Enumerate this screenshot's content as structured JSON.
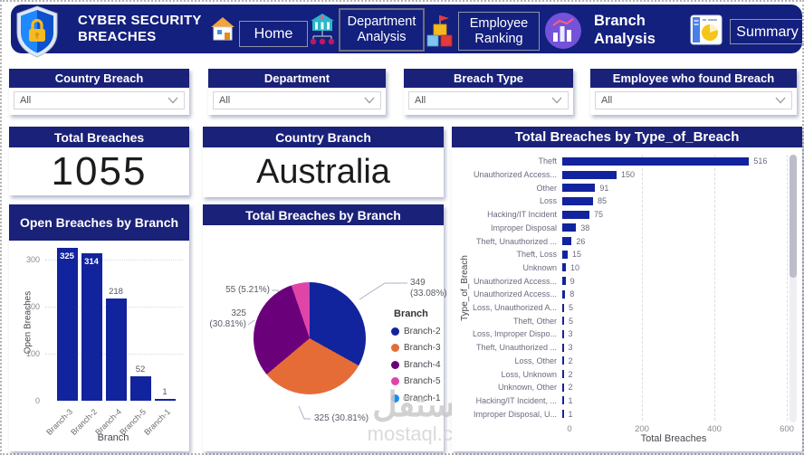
{
  "nav": {
    "title_line1": "CYBER SECURITY",
    "title_line2": "BREACHES",
    "items": [
      {
        "label": "Home"
      },
      {
        "label_line1": "Department",
        "label_line2": "Analysis"
      },
      {
        "label_line1": "Employee",
        "label_line2": "Ranking"
      },
      {
        "label_line1": "Branch",
        "label_line2": "Analysis"
      },
      {
        "label": "Summary"
      }
    ]
  },
  "filters": [
    {
      "title": "Country Breach",
      "value": "All"
    },
    {
      "title": "Department",
      "value": "All"
    },
    {
      "title": "Breach Type",
      "value": "All"
    },
    {
      "title": "Employee who found Breach",
      "value": "All"
    }
  ],
  "cards": {
    "total_breaches": {
      "title": "Total Breaches",
      "value": "1055"
    },
    "country_branch": {
      "title": "Country Branch",
      "value": "Australia"
    }
  },
  "watermark": {
    "arabic": "مستقل",
    "domain": "mostaql.com"
  },
  "colors": {
    "header_navy": "#1a2178",
    "nav_navy": "#13207e",
    "bar_navy": "#12239e",
    "pie": [
      "#12239E",
      "#E66C37",
      "#6B007B",
      "#E044A7",
      "#118DFF"
    ]
  },
  "chart_data": [
    {
      "type": "bar",
      "title": "Open Breaches by Branch",
      "categories": [
        "Branch-3",
        "Branch-2",
        "Branch-4",
        "Branch-5",
        "Branch-1"
      ],
      "values": [
        325,
        314,
        218,
        52,
        1
      ],
      "xlabel": "Branch",
      "ylabel": "Open Breaches",
      "yticks": [
        0,
        100,
        200,
        300
      ],
      "ylim": [
        0,
        340
      ],
      "bar_color": "#12239e"
    },
    {
      "type": "pie",
      "title": "Total Breaches by Branch",
      "legend_title": "Branch",
      "slices": [
        {
          "name": "Branch-2",
          "value": 349,
          "pct": "33.08%",
          "color": "#12239E"
        },
        {
          "name": "Branch-3",
          "value": 325,
          "pct": "30.81%",
          "color": "#E66C37"
        },
        {
          "name": "Branch-4",
          "value": 325,
          "pct": "30.81%",
          "color": "#6B007B"
        },
        {
          "name": "Branch-5",
          "value": 55,
          "pct": "5.21%",
          "color": "#E044A7"
        },
        {
          "name": "Branch-1",
          "value": 1,
          "pct": "0.09%",
          "color": "#118DFF"
        }
      ],
      "callouts": [
        {
          "lines": [
            "349",
            "(33.08%)"
          ]
        },
        {
          "lines": [
            "55 (5.21%)"
          ]
        },
        {
          "lines": [
            "325",
            "(30.81%)"
          ]
        },
        {
          "lines": [
            "325 (30.81%)"
          ]
        }
      ]
    },
    {
      "type": "bar",
      "orientation": "horizontal",
      "title": "Total Breaches by Type_of_Breach",
      "categories": [
        "Theft",
        "Unauthorized Access...",
        "Other",
        "Loss",
        "Hacking/IT Incident",
        "Improper Disposal",
        "Theft, Unauthorized ...",
        "Theft, Loss",
        "Unknown",
        "Unauthorized Access...",
        "Unauthorized Access...",
        "Loss, Unauthorized A...",
        "Theft, Other",
        "Loss, Improper Dispo...",
        "Theft, Unauthorized ...",
        "Loss, Other",
        "Loss, Unknown",
        "Unknown, Other",
        "Hacking/IT Incident, ...",
        "Improper Disposal, U..."
      ],
      "values": [
        516,
        150,
        91,
        85,
        75,
        38,
        26,
        15,
        10,
        9,
        8,
        5,
        5,
        3,
        3,
        2,
        2,
        2,
        1,
        1
      ],
      "xlabel": "Total Breaches",
      "ylabel": "Type_of_Breach",
      "xticks": [
        0,
        200,
        400,
        600
      ],
      "xlim": [
        0,
        620
      ],
      "bar_color": "#12239e"
    }
  ]
}
